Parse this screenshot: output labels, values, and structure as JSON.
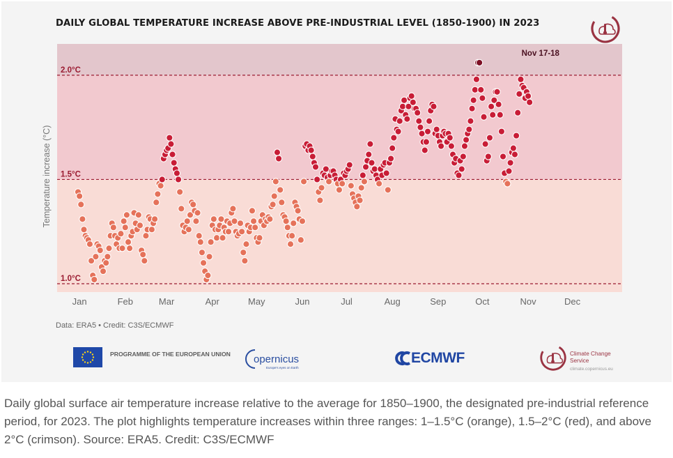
{
  "title": "DAILY GLOBAL TEMPERATURE INCREASE ABOVE PRE-INDUSTRIAL LEVEL (1850-1900) IN 2023",
  "credit": "Data: ERA5 • Credit: C3S/ECMWF",
  "caption": "Daily global surface air temperature increase relative to the average for 1850–1900, the designated pre-industrial reference period, for 2023. The plot highlights temperature increases within three ranges: 1–1.5°C (orange), 1.5–2°C (red), and above 2°C (crimson). Source: ERA5. Credit: C3S/ECMWF",
  "logos": {
    "eu": "PROGRAMME OF THE EUROPEAN UNION",
    "copernicus": "opernicus",
    "copernicus_sub": "Europe's eyes on Earth",
    "ecmwf": "ECMWF",
    "c3s": "Climate Change Service",
    "c3s_url": "climate.copernicus.eu"
  },
  "colors": {
    "card_bg": "#f4f4f4",
    "band_low": "#f9dcd6",
    "band_mid": "#f2c9cf",
    "band_high": "#e3c6cc",
    "orange": "#e5725a",
    "red": "#c81d36",
    "crimson": "#7e1025",
    "threshold_line": "#9b1b31"
  },
  "chart_data": {
    "type": "scatter",
    "title": "DAILY GLOBAL TEMPERATURE INCREASE ABOVE PRE-INDUSTRIAL LEVEL (1850-1900) IN 2023",
    "ylabel": "Temperature increase (°C)",
    "xlabel": "",
    "x_unit": "day of year",
    "ylim": [
      0.96,
      2.15
    ],
    "xlim": [
      1,
      365
    ],
    "month_ticks": [
      {
        "label": "Jan",
        "day": 1
      },
      {
        "label": "Feb",
        "day": 32
      },
      {
        "label": "Mar",
        "day": 60
      },
      {
        "label": "Apr",
        "day": 91
      },
      {
        "label": "May",
        "day": 121
      },
      {
        "label": "Jun",
        "day": 152
      },
      {
        "label": "Jul",
        "day": 182
      },
      {
        "label": "Aug",
        "day": 213
      },
      {
        "label": "Sep",
        "day": 244
      },
      {
        "label": "Oct",
        "day": 274
      },
      {
        "label": "Nov",
        "day": 305
      },
      {
        "label": "Dec",
        "day": 335
      }
    ],
    "thresholds": [
      {
        "value": 1.0,
        "label": "1.0°C"
      },
      {
        "value": 1.5,
        "label": "1.5°C"
      },
      {
        "value": 2.0,
        "label": "2.0°C"
      }
    ],
    "bands": [
      {
        "from": 0.96,
        "to": 1.5,
        "label": "1–1.5°C",
        "color": "orange"
      },
      {
        "from": 1.5,
        "to": 2.0,
        "label": "1.5–2°C",
        "color": "red"
      },
      {
        "from": 2.0,
        "to": 2.15,
        "label": "above 2°C",
        "color": "crimson"
      }
    ],
    "annotation": {
      "label": "Nov 17-18",
      "day": 321,
      "value": 2.06
    },
    "series": [
      {
        "values": [
          1.44,
          1.42,
          1.38,
          1.31,
          1.26,
          1.23,
          1.22,
          1.21,
          1.19,
          1.11,
          1.04,
          1.02,
          1.13,
          1.19,
          1.18,
          1.16,
          1.08,
          1.06,
          1.11,
          1.1,
          1.13,
          1.17,
          1.23,
          1.29,
          1.27,
          1.23,
          1.19,
          1.22,
          1.17,
          1.24,
          1.17,
          1.3,
          1.27,
          1.33,
          1.2,
          1.17,
          1.23,
          1.25,
          1.34,
          1.29,
          1.26,
          1.33,
          1.28,
          1.16,
          1.14,
          1.11,
          1.23,
          1.26,
          1.32,
          1.31,
          1.26,
          1.29,
          1.31,
          1.39,
          1.43,
          1.48,
          1.47,
          1.5,
          1.6,
          1.62,
          1.64,
          1.65,
          1.7,
          1.67,
          1.62,
          1.58,
          1.55,
          1.53,
          1.5,
          1.44,
          1.36,
          1.28,
          1.25,
          1.27,
          1.3,
          1.26,
          1.33,
          1.39,
          1.38,
          1.35,
          1.3,
          1.34,
          1.23,
          1.2,
          1.15,
          1.1,
          1.06,
          1.02,
          1.04,
          1.13,
          1.2,
          1.28,
          1.31,
          1.26,
          1.22,
          1.26,
          1.28,
          1.31,
          1.22,
          1.27,
          1.25,
          1.3,
          1.25,
          1.29,
          1.34,
          1.36,
          1.3,
          1.25,
          1.23,
          1.24,
          1.29,
          1.25,
          1.15,
          1.11,
          1.19,
          1.28,
          1.25,
          1.27,
          1.35,
          1.3,
          1.27,
          1.22,
          1.2,
          1.22,
          1.3,
          1.33,
          1.28,
          1.31,
          1.3,
          1.32,
          1.31,
          1.37,
          1.38,
          1.42,
          1.49,
          1.63,
          1.6,
          1.45,
          1.39,
          1.33,
          1.32,
          1.3,
          1.27,
          1.23,
          1.19,
          1.23,
          1.29,
          1.39,
          1.37,
          1.35,
          1.31,
          1.21,
          1.3,
          1.49,
          1.66,
          1.67,
          1.64,
          1.66,
          1.64,
          1.61,
          1.58,
          1.56,
          1.5,
          1.44,
          1.4,
          1.46,
          1.53,
          1.52,
          1.55,
          1.51,
          1.49,
          1.52,
          1.54,
          1.54,
          1.52,
          1.5,
          1.48,
          1.45,
          1.5,
          1.48,
          1.53,
          1.52,
          1.54,
          1.55,
          1.57,
          1.47,
          1.43,
          1.41,
          1.39,
          1.37,
          1.42,
          1.4,
          1.46,
          1.52,
          1.49,
          1.56,
          1.59,
          1.62,
          1.67,
          1.58,
          1.54,
          1.55,
          1.52,
          1.5,
          1.48,
          1.55,
          1.52,
          1.57,
          1.58,
          1.53,
          1.45,
          1.58,
          1.6,
          1.65,
          1.7,
          1.79,
          1.74,
          1.73,
          1.78,
          1.83,
          1.85,
          1.88,
          1.81,
          1.79,
          1.85,
          1.89,
          1.9,
          1.87,
          1.84,
          1.84,
          1.82,
          1.78,
          1.75,
          1.72,
          1.68,
          1.64,
          1.68,
          1.73,
          1.78,
          1.83,
          1.86,
          1.85,
          1.72,
          1.74,
          1.71,
          1.68,
          1.66,
          1.71,
          1.73,
          1.72,
          1.68,
          1.72,
          1.7,
          1.66,
          1.62,
          1.58,
          1.6,
          1.53,
          1.52,
          1.59,
          1.55,
          1.61,
          1.66,
          1.69,
          1.72,
          1.74,
          1.78,
          1.84,
          1.88,
          1.93,
          1.98,
          2.06,
          2.06,
          1.93,
          1.89,
          1.8,
          1.67,
          1.59,
          1.61,
          1.7,
          1.85,
          1.81,
          1.88,
          1.92,
          1.92,
          1.86,
          1.81,
          1.73,
          1.61,
          1.53,
          1.49,
          1.48,
          1.54,
          1.58,
          1.63,
          1.65,
          1.62,
          1.71,
          1.82,
          1.91,
          1.98,
          1.95,
          1.94,
          1.89,
          1.92,
          1.9,
          1.87
        ]
      }
    ]
  }
}
